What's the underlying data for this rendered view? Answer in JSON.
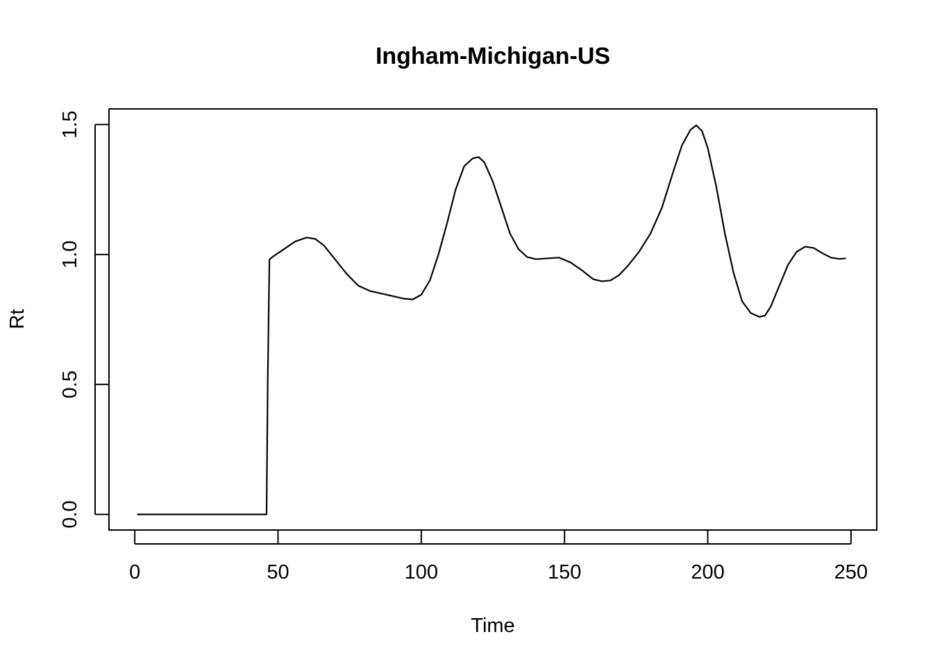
{
  "chart_data": {
    "type": "line",
    "title": "Ingham-Michigan-US",
    "xlabel": "Time",
    "ylabel": "Rt",
    "xlim": [
      -9,
      259
    ],
    "ylim": [
      -0.06,
      1.56
    ],
    "x_ticks": [
      0,
      50,
      100,
      150,
      200,
      250
    ],
    "x_tick_labels": [
      "0",
      "50",
      "100",
      "150",
      "200",
      "250"
    ],
    "y_ticks": [
      0.0,
      0.5,
      1.0,
      1.5
    ],
    "y_tick_labels": [
      "0.0",
      "0.5",
      "1.0",
      "1.5"
    ],
    "grid": false,
    "legend": "none",
    "line_color": "#000000",
    "series": [
      {
        "x": [
          1,
          10,
          20,
          30,
          40,
          46,
          46.4,
          47,
          48,
          52,
          56,
          60,
          63,
          66,
          70,
          74,
          78,
          82,
          86,
          90,
          94,
          97,
          100,
          103,
          106,
          109,
          112,
          115,
          118,
          120,
          122,
          125,
          128,
          131,
          134,
          137,
          140,
          144,
          148,
          152,
          156,
          160,
          163,
          166,
          169,
          172,
          176,
          180,
          184,
          188,
          191,
          194,
          196,
          198,
          200,
          203,
          206,
          209,
          212,
          215,
          218,
          220,
          222,
          225,
          228,
          231,
          234,
          237,
          240,
          243,
          246,
          248
        ],
        "y": [
          0,
          0,
          0,
          0,
          0,
          0,
          0.5,
          0.98,
          0.99,
          1.02,
          1.05,
          1.065,
          1.06,
          1.035,
          0.98,
          0.925,
          0.88,
          0.86,
          0.85,
          0.84,
          0.83,
          0.827,
          0.845,
          0.9,
          1.0,
          1.12,
          1.25,
          1.34,
          1.37,
          1.375,
          1.355,
          1.28,
          1.18,
          1.08,
          1.02,
          0.99,
          0.982,
          0.985,
          0.988,
          0.97,
          0.94,
          0.905,
          0.897,
          0.9,
          0.92,
          0.955,
          1.01,
          1.08,
          1.18,
          1.32,
          1.42,
          1.48,
          1.497,
          1.475,
          1.41,
          1.26,
          1.08,
          0.93,
          0.82,
          0.775,
          0.76,
          0.765,
          0.8,
          0.88,
          0.96,
          1.01,
          1.03,
          1.025,
          1.005,
          0.988,
          0.983,
          0.985
        ]
      }
    ]
  }
}
